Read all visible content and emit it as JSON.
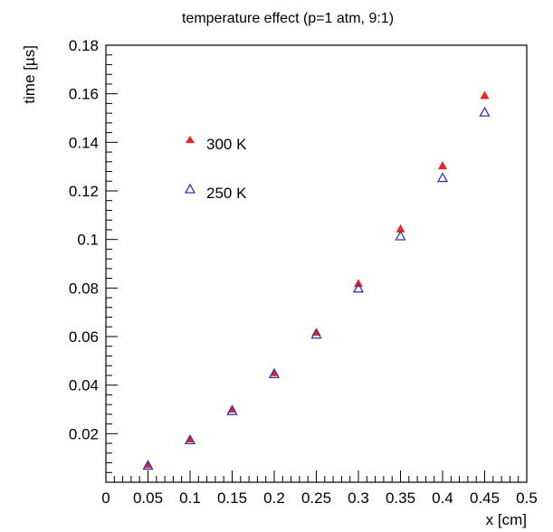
{
  "chart_data": {
    "type": "scatter",
    "title": "temperature effect (p=1 atm, 9:1)",
    "xlabel": "x [cm]",
    "ylabel": "time [µs]",
    "xlim": [
      0,
      0.5
    ],
    "ylim": [
      0,
      0.18
    ],
    "x_ticks": [
      "0",
      "0.05",
      "0.1",
      "0.15",
      "0.2",
      "0.25",
      "0.3",
      "0.35",
      "0.4",
      "0.45",
      "0.5"
    ],
    "y_ticks": [
      "0.02",
      "0.04",
      "0.06",
      "0.08",
      "0.1",
      "0.12",
      "0.14",
      "0.16",
      "0.18"
    ],
    "grid": false,
    "legend_position": "top-left",
    "series": [
      {
        "name": "300 K",
        "color": "#e8251f",
        "marker": "filled-triangle",
        "x": [
          0.05,
          0.1,
          0.15,
          0.2,
          0.25,
          0.3,
          0.35,
          0.4,
          0.45
        ],
        "y": [
          0.007,
          0.0175,
          0.0298,
          0.0448,
          0.0615,
          0.0815,
          0.104,
          0.13,
          0.159
        ]
      },
      {
        "name": "250 K",
        "color": "#3535b0",
        "marker": "open-triangle",
        "x": [
          0.05,
          0.1,
          0.15,
          0.2,
          0.25,
          0.3,
          0.35,
          0.4,
          0.45
        ],
        "y": [
          0.0065,
          0.017,
          0.029,
          0.0442,
          0.0605,
          0.0795,
          0.101,
          0.125,
          0.152
        ]
      }
    ]
  }
}
